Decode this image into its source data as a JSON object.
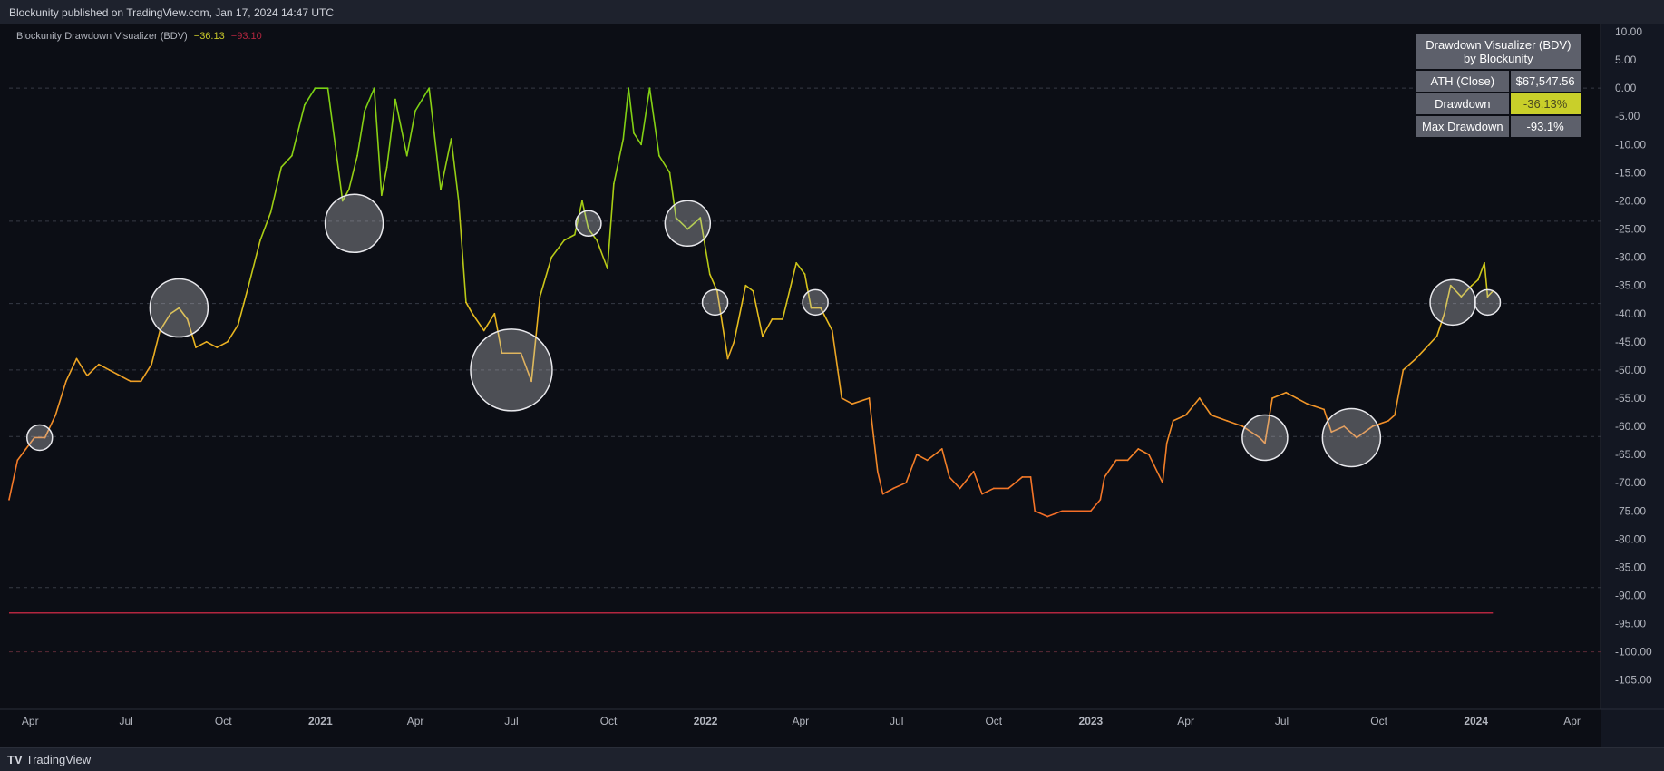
{
  "header": {
    "publisher_text": "Blockunity published on TradingView.com, Jan 17, 2024 14:47 UTC"
  },
  "indicator": {
    "name": "Blockunity Drawdown Visualizer (BDV)",
    "value_current": "−36.13",
    "value_max": "−93.10"
  },
  "info_table": {
    "title_line1": "Drawdown Visualizer (BDV)",
    "title_line2": "by Blockunity",
    "rows": [
      {
        "label": "ATH (Close)",
        "value": "$67,547.56"
      },
      {
        "label": "Drawdown",
        "value": "-36.13%"
      },
      {
        "label": "Max Drawdown",
        "value": "-93.1%"
      }
    ]
  },
  "footer": {
    "brand": "TradingView"
  },
  "colors": {
    "background": "#131722",
    "max_drawdown_line": "#b3263f",
    "dashed_grid": "#363a45"
  },
  "chart_data": {
    "type": "line",
    "title": "Blockunity Drawdown Visualizer (BDV)",
    "ylim": [
      -105,
      10
    ],
    "y_ticks": [
      "10.00",
      "5.00",
      "0.00",
      "-5.00",
      "-10.00",
      "-15.00",
      "-20.00",
      "-25.00",
      "-30.00",
      "-35.00",
      "-40.00",
      "-45.00",
      "-50.00",
      "-55.00",
      "-60.00",
      "-65.00",
      "-70.00",
      "-75.00",
      "-80.00",
      "-85.00",
      "-90.00",
      "-95.00",
      "-100.00",
      "-105.00"
    ],
    "x_ticks": [
      {
        "label": "Apr",
        "date": "2020-04-01"
      },
      {
        "label": "Jul",
        "date": "2020-07-01"
      },
      {
        "label": "Oct",
        "date": "2020-10-01"
      },
      {
        "label": "2021",
        "date": "2021-01-01"
      },
      {
        "label": "Apr",
        "date": "2021-04-01"
      },
      {
        "label": "Jul",
        "date": "2021-07-01"
      },
      {
        "label": "Oct",
        "date": "2021-10-01"
      },
      {
        "label": "2022",
        "date": "2022-01-01"
      },
      {
        "label": "Apr",
        "date": "2022-04-01"
      },
      {
        "label": "Jul",
        "date": "2022-07-01"
      },
      {
        "label": "Oct",
        "date": "2022-10-01"
      },
      {
        "label": "2023",
        "date": "2023-01-01"
      },
      {
        "label": "Apr",
        "date": "2023-04-01"
      },
      {
        "label": "Jul",
        "date": "2023-07-01"
      },
      {
        "label": "Oct",
        "date": "2023-10-01"
      },
      {
        "label": "2024",
        "date": "2024-01-01"
      },
      {
        "label": "Apr",
        "date": "2024-04-01"
      }
    ],
    "x_range": [
      "2020-03-12",
      "2024-04-28"
    ],
    "max_drawdown_level": -93.1,
    "dashed_levels": [
      0,
      -23.6,
      -38.2,
      -50,
      -61.8,
      -88.6,
      -100
    ],
    "series": [
      {
        "points": [
          [
            "2020-03-12",
            -73
          ],
          [
            "2020-03-20",
            -66
          ],
          [
            "2020-03-28",
            -64
          ],
          [
            "2020-04-05",
            -62
          ],
          [
            "2020-04-15",
            -62
          ],
          [
            "2020-04-25",
            -58
          ],
          [
            "2020-05-05",
            -52
          ],
          [
            "2020-05-15",
            -48
          ],
          [
            "2020-05-25",
            -51
          ],
          [
            "2020-06-05",
            -49
          ],
          [
            "2020-06-15",
            -50
          ],
          [
            "2020-06-25",
            -51
          ],
          [
            "2020-07-05",
            -52
          ],
          [
            "2020-07-15",
            -52
          ],
          [
            "2020-07-25",
            -49
          ],
          [
            "2020-08-02",
            -43
          ],
          [
            "2020-08-12",
            -40
          ],
          [
            "2020-08-20",
            -39
          ],
          [
            "2020-08-28",
            -41
          ],
          [
            "2020-09-05",
            -46
          ],
          [
            "2020-09-15",
            -45
          ],
          [
            "2020-09-25",
            -46
          ],
          [
            "2020-10-05",
            -45
          ],
          [
            "2020-10-15",
            -42
          ],
          [
            "2020-10-25",
            -35
          ],
          [
            "2020-11-05",
            -27
          ],
          [
            "2020-11-15",
            -22
          ],
          [
            "2020-11-25",
            -14
          ],
          [
            "2020-12-05",
            -12
          ],
          [
            "2020-12-17",
            -3
          ],
          [
            "2020-12-27",
            0
          ],
          [
            "2021-01-08",
            0
          ],
          [
            "2021-01-15",
            -10
          ],
          [
            "2021-01-22",
            -20
          ],
          [
            "2021-01-28",
            -18
          ],
          [
            "2021-02-05",
            -12
          ],
          [
            "2021-02-12",
            -4
          ],
          [
            "2021-02-21",
            0
          ],
          [
            "2021-02-28",
            -19
          ],
          [
            "2021-03-05",
            -14
          ],
          [
            "2021-03-13",
            -2
          ],
          [
            "2021-03-24",
            -12
          ],
          [
            "2021-04-01",
            -4
          ],
          [
            "2021-04-14",
            0
          ],
          [
            "2021-04-25",
            -18
          ],
          [
            "2021-05-05",
            -9
          ],
          [
            "2021-05-12",
            -20
          ],
          [
            "2021-05-19",
            -38
          ],
          [
            "2021-05-25",
            -40
          ],
          [
            "2021-06-05",
            -43
          ],
          [
            "2021-06-15",
            -40
          ],
          [
            "2021-06-22",
            -47
          ],
          [
            "2021-07-01",
            -47
          ],
          [
            "2021-07-10",
            -47
          ],
          [
            "2021-07-20",
            -52
          ],
          [
            "2021-07-28",
            -37
          ],
          [
            "2021-08-08",
            -30
          ],
          [
            "2021-08-20",
            -27
          ],
          [
            "2021-08-30",
            -26
          ],
          [
            "2021-09-06",
            -20
          ],
          [
            "2021-09-12",
            -25
          ],
          [
            "2021-09-20",
            -27
          ],
          [
            "2021-09-30",
            -32
          ],
          [
            "2021-10-06",
            -17
          ],
          [
            "2021-10-15",
            -9
          ],
          [
            "2021-10-20",
            0
          ],
          [
            "2021-10-25",
            -8
          ],
          [
            "2021-11-01",
            -10
          ],
          [
            "2021-11-09",
            0
          ],
          [
            "2021-11-18",
            -12
          ],
          [
            "2021-11-28",
            -15
          ],
          [
            "2021-12-04",
            -23
          ],
          [
            "2021-12-15",
            -25
          ],
          [
            "2021-12-27",
            -23
          ],
          [
            "2022-01-05",
            -33
          ],
          [
            "2022-01-12",
            -36
          ],
          [
            "2022-01-22",
            -48
          ],
          [
            "2022-01-28",
            -45
          ],
          [
            "2022-02-08",
            -35
          ],
          [
            "2022-02-15",
            -36
          ],
          [
            "2022-02-24",
            -44
          ],
          [
            "2022-03-05",
            -41
          ],
          [
            "2022-03-15",
            -41
          ],
          [
            "2022-03-28",
            -31
          ],
          [
            "2022-04-05",
            -33
          ],
          [
            "2022-04-11",
            -39
          ],
          [
            "2022-04-20",
            -39
          ],
          [
            "2022-05-01",
            -43
          ],
          [
            "2022-05-10",
            -55
          ],
          [
            "2022-05-20",
            -56
          ],
          [
            "2022-06-05",
            -55
          ],
          [
            "2022-06-13",
            -68
          ],
          [
            "2022-06-18",
            -72
          ],
          [
            "2022-06-28",
            -71
          ],
          [
            "2022-07-10",
            -70
          ],
          [
            "2022-07-20",
            -65
          ],
          [
            "2022-07-30",
            -66
          ],
          [
            "2022-08-13",
            -64
          ],
          [
            "2022-08-20",
            -69
          ],
          [
            "2022-08-30",
            -71
          ],
          [
            "2022-09-12",
            -68
          ],
          [
            "2022-09-20",
            -72
          ],
          [
            "2022-10-01",
            -71
          ],
          [
            "2022-10-15",
            -71
          ],
          [
            "2022-10-28",
            -69
          ],
          [
            "2022-11-05",
            -69
          ],
          [
            "2022-11-09",
            -75
          ],
          [
            "2022-11-21",
            -76
          ],
          [
            "2022-12-05",
            -75
          ],
          [
            "2022-12-20",
            -75
          ],
          [
            "2023-01-01",
            -75
          ],
          [
            "2023-01-10",
            -73
          ],
          [
            "2023-01-14",
            -69
          ],
          [
            "2023-01-25",
            -66
          ],
          [
            "2023-02-05",
            -66
          ],
          [
            "2023-02-15",
            -64
          ],
          [
            "2023-02-25",
            -65
          ],
          [
            "2023-03-10",
            -70
          ],
          [
            "2023-03-14",
            -63
          ],
          [
            "2023-03-20",
            -59
          ],
          [
            "2023-04-01",
            -58
          ],
          [
            "2023-04-14",
            -55
          ],
          [
            "2023-04-25",
            -58
          ],
          [
            "2023-05-10",
            -59
          ],
          [
            "2023-05-25",
            -60
          ],
          [
            "2023-06-10",
            -62
          ],
          [
            "2023-06-15",
            -63
          ],
          [
            "2023-06-22",
            -55
          ],
          [
            "2023-07-05",
            -54
          ],
          [
            "2023-07-15",
            -55
          ],
          [
            "2023-07-25",
            -56
          ],
          [
            "2023-08-10",
            -57
          ],
          [
            "2023-08-17",
            -61
          ],
          [
            "2023-08-29",
            -60
          ],
          [
            "2023-09-10",
            -62
          ],
          [
            "2023-09-25",
            -60
          ],
          [
            "2023-10-10",
            -59
          ],
          [
            "2023-10-16",
            -58
          ],
          [
            "2023-10-24",
            -50
          ],
          [
            "2023-11-05",
            -48
          ],
          [
            "2023-11-15",
            -46
          ],
          [
            "2023-11-25",
            -44
          ],
          [
            "2023-12-02",
            -40
          ],
          [
            "2023-12-08",
            -35
          ],
          [
            "2023-12-18",
            -37
          ],
          [
            "2023-12-28",
            -35
          ],
          [
            "2024-01-03",
            -34
          ],
          [
            "2024-01-09",
            -31
          ],
          [
            "2024-01-12",
            -37
          ],
          [
            "2024-01-17",
            -36
          ]
        ]
      }
    ],
    "markers": [
      {
        "date": "2020-04-10",
        "value": -62,
        "size": "small"
      },
      {
        "date": "2020-08-20",
        "value": -39,
        "size": "large"
      },
      {
        "date": "2021-02-02",
        "value": -24,
        "size": "large"
      },
      {
        "date": "2021-07-01",
        "value": -50,
        "size": "xlarge"
      },
      {
        "date": "2021-09-12",
        "value": -24,
        "size": "small"
      },
      {
        "date": "2021-12-15",
        "value": -24,
        "size": "medium"
      },
      {
        "date": "2022-01-10",
        "value": -38,
        "size": "small"
      },
      {
        "date": "2022-04-15",
        "value": -38,
        "size": "small"
      },
      {
        "date": "2023-06-15",
        "value": -62,
        "size": "medium"
      },
      {
        "date": "2023-09-05",
        "value": -62,
        "size": "large"
      },
      {
        "date": "2023-12-10",
        "value": -38,
        "size": "medium"
      },
      {
        "date": "2024-01-12",
        "value": -38,
        "size": "small"
      }
    ]
  }
}
